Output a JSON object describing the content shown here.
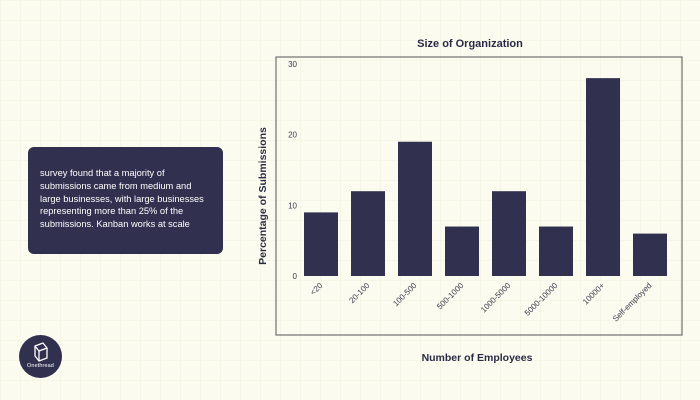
{
  "callout": {
    "text": "survey found that a majority of submissions came from medium and large businesses, with large businesses representing more than 25% of the submissions. Kanban works at scale"
  },
  "logo": {
    "text": "Onethread",
    "icon": "onethread-cube-icon"
  },
  "colors": {
    "bar": "#31304f",
    "background": "#fbfbf0",
    "frame": "#555555"
  },
  "chart_data": {
    "type": "bar",
    "title": "Size of Organization",
    "xlabel": "Number of Employees",
    "ylabel": "Percentage of Submissions",
    "categories": [
      "<20",
      "20-100",
      "100-500",
      "500-1000",
      "1000-5000",
      "5000-10000",
      "10000+",
      "Self-employed"
    ],
    "values": [
      9,
      12,
      19,
      7,
      12,
      7,
      28,
      6
    ],
    "ylim": [
      0,
      30
    ],
    "yticks": [
      0,
      10,
      20,
      30
    ],
    "grid": false,
    "legend": "none"
  }
}
